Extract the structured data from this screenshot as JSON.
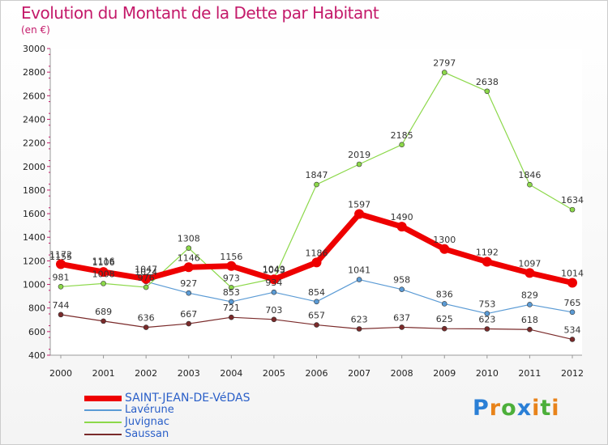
{
  "header": {
    "title": "Evolution du Montant de la Dette par Habitant",
    "subtitle": "(en €)"
  },
  "brand": {
    "letters": [
      "P",
      "r",
      "o",
      "x",
      "i",
      "t",
      "i"
    ],
    "colors": [
      "#2a7fd6",
      "#e8831a",
      "#4caf3a",
      "#2a7fd6",
      "#e8831a",
      "#4caf3a",
      "#e8831a"
    ]
  },
  "chart_data": {
    "type": "line",
    "title": "Evolution du Montant de la Dette par Habitant",
    "subtitle": "(en €)",
    "xlabel": "",
    "ylabel": "",
    "x": [
      "2000",
      "2001",
      "2002",
      "2003",
      "2004",
      "2005",
      "2006",
      "2007",
      "2008",
      "2009",
      "2010",
      "2011",
      "2012"
    ],
    "ylim": [
      400,
      3000
    ],
    "yticks": [
      400,
      600,
      800,
      1000,
      1200,
      1400,
      1600,
      1800,
      2000,
      2200,
      2400,
      2600,
      2800,
      3000
    ],
    "grid": false,
    "legend_position": "bottom-left",
    "series": [
      {
        "name": "SAINT-JEAN-DE-VéDAS",
        "color": "#ee0000",
        "values": [
          1172,
          1106,
          1047,
          1146,
          1156,
          1043,
          1186,
          1597,
          1490,
          1300,
          1192,
          1097,
          1014
        ]
      },
      {
        "name": "Lavérune",
        "color": "#5b9bd5",
        "values": [
          1155,
          1116,
          1024,
          927,
          853,
          934,
          854,
          1041,
          958,
          836,
          753,
          829,
          765
        ]
      },
      {
        "name": "Juvignac",
        "color": "#8cd84a",
        "values": [
          981,
          1008,
          976,
          1308,
          973,
          1049,
          1847,
          2019,
          2185,
          2797,
          2638,
          1846,
          1634
        ]
      },
      {
        "name": "Saussan",
        "color": "#7a2a2a",
        "values": [
          744,
          689,
          636,
          667,
          721,
          703,
          657,
          623,
          637,
          625,
          623,
          618,
          534
        ]
      }
    ]
  }
}
